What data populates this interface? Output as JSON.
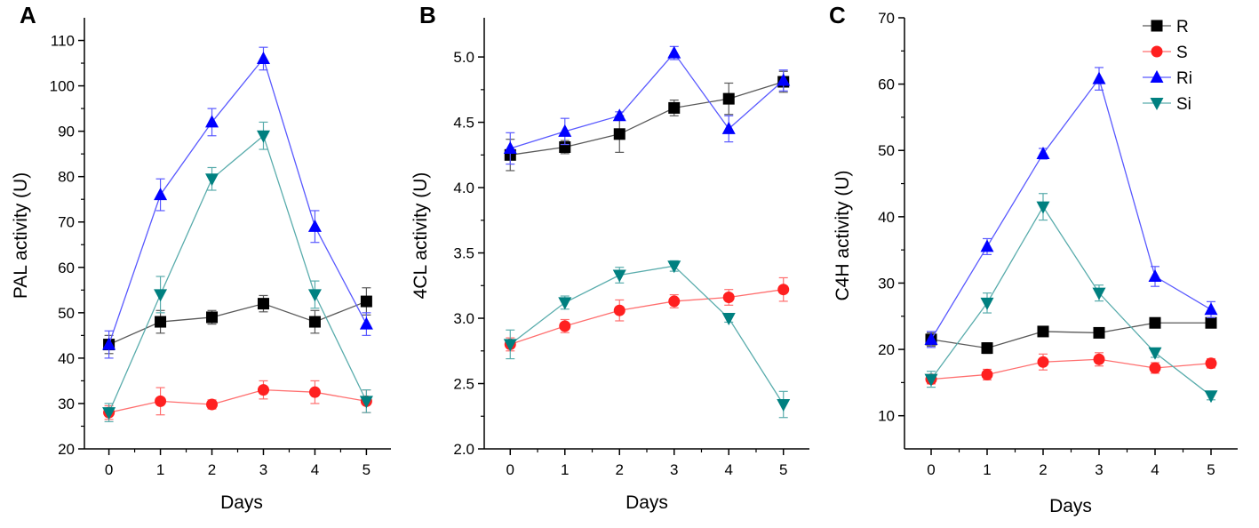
{
  "legend": [
    {
      "name": "R",
      "color": "#000000",
      "marker": "square"
    },
    {
      "name": "S",
      "color": "#ff2020",
      "marker": "circle"
    },
    {
      "name": "Ri",
      "color": "#0000ff",
      "marker": "triangle-up"
    },
    {
      "name": "Si",
      "color": "#008080",
      "marker": "triangle-down"
    }
  ],
  "chart_data": [
    {
      "panel": "A",
      "type": "line",
      "xlabel": "Days",
      "ylabel": "PAL activity (U)",
      "categories": [
        0,
        1,
        2,
        3,
        4,
        5
      ],
      "ylim": [
        20,
        115
      ],
      "yticks": [
        20,
        30,
        40,
        50,
        60,
        70,
        80,
        90,
        100,
        110
      ],
      "series": [
        {
          "name": "R",
          "values": [
            43,
            48,
            49,
            52,
            48,
            52.5
          ],
          "errors": [
            2,
            2.5,
            1.5,
            1.8,
            2.5,
            3
          ]
        },
        {
          "name": "S",
          "values": [
            28,
            30.5,
            29.8,
            33,
            32.5,
            30.5
          ],
          "errors": [
            1.5,
            3,
            1,
            2,
            2.5,
            2.5
          ]
        },
        {
          "name": "Ri",
          "values": [
            43,
            76,
            92,
            106,
            69,
            47.5
          ],
          "errors": [
            3,
            3.5,
            3,
            2.5,
            3.5,
            2.5
          ]
        },
        {
          "name": "Si",
          "values": [
            28,
            54,
            79.5,
            89,
            54,
            30.5
          ],
          "errors": [
            2,
            4,
            2.5,
            3,
            3,
            2.5
          ]
        }
      ]
    },
    {
      "panel": "B",
      "type": "line",
      "xlabel": "Days",
      "ylabel": "4CL activity (U)",
      "categories": [
        0,
        1,
        2,
        3,
        4,
        5
      ],
      "ylim": [
        2.0,
        5.3
      ],
      "yticks": [
        2.0,
        2.5,
        3.0,
        3.5,
        4.0,
        4.5,
        5.0
      ],
      "series": [
        {
          "name": "R",
          "values": [
            4.25,
            4.31,
            4.41,
            4.61,
            4.68,
            4.81
          ],
          "errors": [
            0.12,
            0.05,
            0.14,
            0.06,
            0.12,
            0.08
          ]
        },
        {
          "name": "S",
          "values": [
            2.8,
            2.94,
            3.06,
            3.13,
            3.16,
            3.22
          ],
          "errors": [
            0.05,
            0.05,
            0.08,
            0.05,
            0.06,
            0.09
          ]
        },
        {
          "name": "Ri",
          "values": [
            4.3,
            4.43,
            4.55,
            5.03,
            4.45,
            4.82
          ],
          "errors": [
            0.12,
            0.1,
            0.03,
            0.05,
            0.1,
            0.08
          ]
        },
        {
          "name": "Si",
          "values": [
            2.8,
            3.12,
            3.33,
            3.4,
            3.0,
            2.34
          ],
          "errors": [
            0.11,
            0.05,
            0.06,
            0.04,
            0.03,
            0.1
          ]
        }
      ]
    },
    {
      "panel": "C",
      "type": "line",
      "xlabel": "Days",
      "ylabel": "C4H activity (U)",
      "categories": [
        0,
        1,
        2,
        3,
        4,
        5
      ],
      "ylim": [
        5,
        70
      ],
      "yticks": [
        10,
        20,
        30,
        40,
        50,
        60,
        70
      ],
      "series": [
        {
          "name": "R",
          "values": [
            21.5,
            20.2,
            22.7,
            22.5,
            24.0,
            24.0
          ],
          "errors": [
            1,
            0.8,
            0.7,
            0.7,
            0.6,
            0.6
          ]
        },
        {
          "name": "S",
          "values": [
            15.5,
            16.2,
            18.1,
            18.5,
            17.2,
            17.9
          ],
          "errors": [
            0.7,
            0.8,
            1.2,
            1.0,
            0.8,
            0.7
          ]
        },
        {
          "name": "Ri",
          "values": [
            21.5,
            35.5,
            49.5,
            60.8,
            31.0,
            26.0
          ],
          "errors": [
            1.2,
            1.2,
            0.8,
            1.7,
            1.5,
            1.2
          ]
        },
        {
          "name": "Si",
          "values": [
            15.5,
            27.0,
            41.5,
            28.5,
            19.5,
            13.0
          ],
          "errors": [
            1.2,
            1.5,
            2.0,
            1.2,
            0.7,
            0.6
          ]
        }
      ]
    }
  ]
}
